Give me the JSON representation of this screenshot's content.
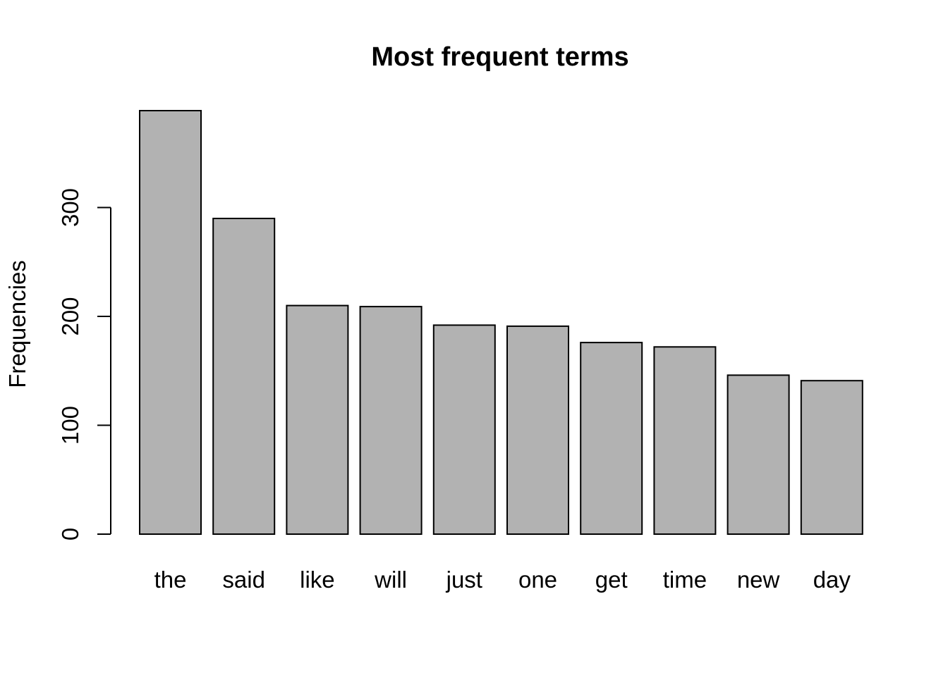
{
  "chart_data": {
    "type": "bar",
    "title": "Most frequent terms",
    "xlabel": "",
    "ylabel": "Frequencies",
    "categories": [
      "the",
      "said",
      "like",
      "will",
      "just",
      "one",
      "get",
      "time",
      "new",
      "day"
    ],
    "values": [
      389,
      290,
      210,
      209,
      192,
      191,
      176,
      172,
      146,
      141
    ],
    "yticks": [
      0,
      100,
      200,
      300
    ],
    "ylim": [
      0,
      389
    ],
    "bar_color": "#b2b2b2",
    "bar_border_color": "#000000",
    "grid": false,
    "legend": "none"
  }
}
